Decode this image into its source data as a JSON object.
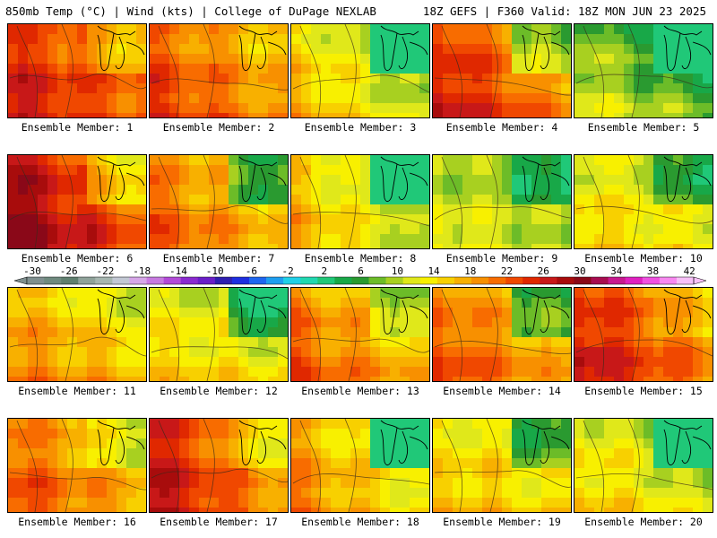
{
  "header": {
    "left": "850mb Temp (°C) | Wind (kts) | College of DuPage NEXLAB",
    "right": "18Z GEFS | F360 Valid: 18Z MON JUN 23 2025"
  },
  "legend": {
    "ticks": [
      "-30",
      "-26",
      "-22",
      "-18",
      "-14",
      "-10",
      "-6",
      "-2",
      "2",
      "6",
      "10",
      "14",
      "18",
      "22",
      "26",
      "30",
      "34",
      "38",
      "42"
    ],
    "colors": [
      "#7f8f8f",
      "#6f8a7f",
      "#5f7f6f",
      "#8fa29a",
      "#a6b6b0",
      "#c2c8d4",
      "#d6a6e8",
      "#c77ae0",
      "#b24ad8",
      "#8a2ad0",
      "#6a1ec8",
      "#2e1eb0",
      "#1e2ee0",
      "#1e66f0",
      "#1e9ef0",
      "#20d0e8",
      "#20d8b0",
      "#20c878",
      "#18a848",
      "#2a9a30",
      "#6cbc28",
      "#a8d020",
      "#e0e81a",
      "#f8f000",
      "#f8d000",
      "#f8b000",
      "#f89000",
      "#f86c00",
      "#f04800",
      "#e02800",
      "#c81818",
      "#a80c0c",
      "#8a0818",
      "#a80c50",
      "#c81890",
      "#e020c0",
      "#f050e0",
      "#f888f0",
      "#f8c0f8"
    ]
  },
  "ensemble": {
    "label_prefix": "Ensemble Member:",
    "members": [
      {
        "id": "1",
        "warmth": 0.72,
        "west": 0.2,
        "east": -0.1
      },
      {
        "id": "2",
        "warmth": 0.62,
        "west": 0.25,
        "east": 0.0
      },
      {
        "id": "3",
        "warmth": 0.35,
        "west": 0.3,
        "east": -0.35
      },
      {
        "id": "4",
        "warmth": 0.68,
        "west": 0.3,
        "east": -0.3
      },
      {
        "id": "5",
        "warmth": 0.2,
        "west": 0.2,
        "east": -0.5
      },
      {
        "id": "6",
        "warmth": 0.8,
        "west": 0.35,
        "east": -0.2
      },
      {
        "id": "7",
        "warmth": 0.55,
        "west": 0.25,
        "east": -0.3
      },
      {
        "id": "8",
        "warmth": 0.35,
        "west": 0.35,
        "east": -0.45
      },
      {
        "id": "9",
        "warmth": 0.28,
        "west": 0.15,
        "east": -0.15
      },
      {
        "id": "10",
        "warmth": 0.38,
        "west": 0.1,
        "east": -0.2
      },
      {
        "id": "11",
        "warmth": 0.5,
        "west": 0.15,
        "east": -0.05
      },
      {
        "id": "12",
        "warmth": 0.38,
        "west": 0.1,
        "east": -0.25
      },
      {
        "id": "13",
        "warmth": 0.55,
        "west": 0.25,
        "east": -0.15
      },
      {
        "id": "14",
        "warmth": 0.58,
        "west": 0.25,
        "east": -0.3
      },
      {
        "id": "15",
        "warmth": 0.7,
        "west": 0.3,
        "east": -0.05
      },
      {
        "id": "16",
        "warmth": 0.58,
        "west": 0.25,
        "east": -0.1
      },
      {
        "id": "17",
        "warmth": 0.68,
        "west": 0.4,
        "east": -0.1
      },
      {
        "id": "18",
        "warmth": 0.45,
        "west": 0.3,
        "east": -0.5
      },
      {
        "id": "19",
        "warmth": 0.42,
        "west": 0.1,
        "east": -0.2
      },
      {
        "id": "20",
        "warmth": 0.35,
        "west": 0.2,
        "east": -0.45
      }
    ]
  }
}
